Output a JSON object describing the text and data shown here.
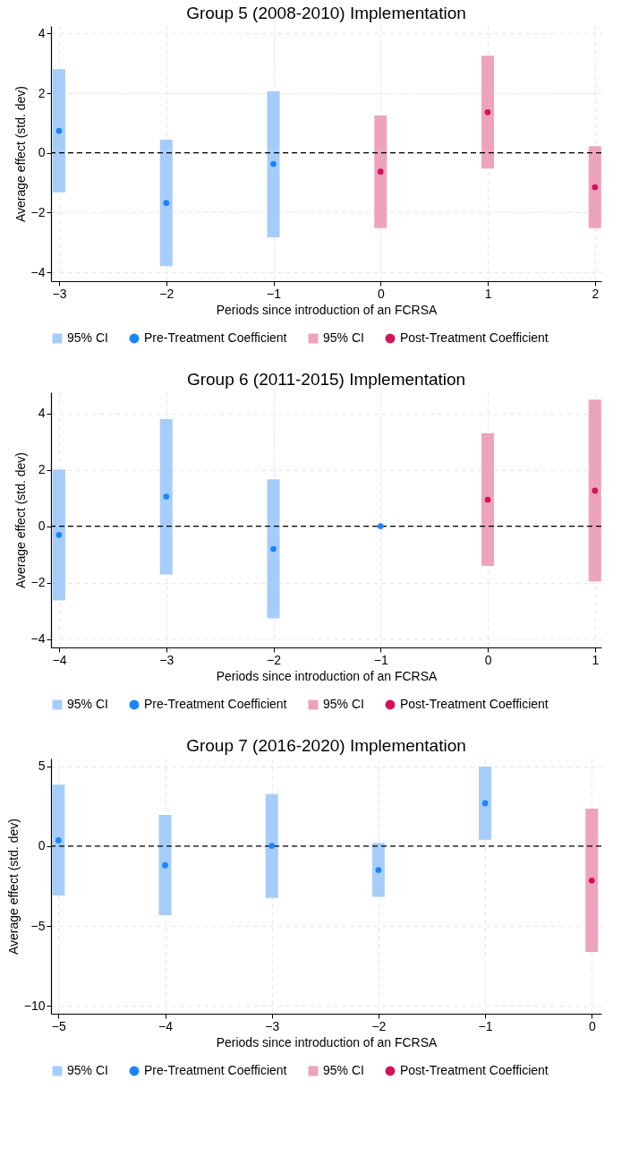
{
  "chart_data": [
    {
      "type": "scatter",
      "title": "Group 5 (2008-2010) Implementation",
      "xlabel": "Periods since introduction of an FCRSA",
      "ylabel": "Average effect (std. dev)",
      "xlim": [
        -3.075,
        2.06
      ],
      "xticks": [
        -3,
        -2,
        -1,
        0,
        1,
        2
      ],
      "ylim": [
        -4.3,
        4.25
      ],
      "yticks": [
        -4,
        -2,
        0,
        2,
        4
      ],
      "grid": true,
      "legend": "bottom",
      "ref_lines": [
        {
          "axis": "y",
          "value": 0,
          "line_style": "dashed",
          "color": "#000000"
        }
      ],
      "series": [
        {
          "name": "95% CI",
          "type": "bar",
          "color": "#a6cdf9",
          "x": [
            -3,
            -2,
            -1
          ],
          "base": [
            -1.32,
            -3.8,
            -2.83
          ],
          "values": [
            4.12,
            4.24,
            4.89
          ]
        },
        {
          "name": "Pre-Treatment Coefficient",
          "type": "scatter",
          "color": "#1a85ff",
          "x": [
            -3,
            -2,
            -1
          ],
          "values": [
            0.74,
            -1.68,
            -0.37
          ]
        },
        {
          "name": "95% CI",
          "type": "bar",
          "color": "#eda3bb",
          "x": [
            0,
            1,
            2
          ],
          "base": [
            -2.52,
            -0.53,
            -2.52
          ],
          "values": [
            3.77,
            3.78,
            2.74
          ]
        },
        {
          "name": "Post-Treatment Coefficient",
          "type": "scatter",
          "color": "#d41159",
          "x": [
            0,
            1,
            2
          ],
          "values": [
            -0.63,
            1.36,
            -1.15
          ]
        }
      ]
    },
    {
      "type": "scatter",
      "title": "Group 6 (2011-2015) Implementation",
      "xlabel": "Periods since introduction of an FCRSA",
      "ylabel": "Average effect (std. dev)",
      "xlim": [
        -4.075,
        1.06
      ],
      "xticks": [
        -4,
        -3,
        -2,
        -1,
        0,
        1
      ],
      "ylim": [
        -4.3,
        4.75
      ],
      "yticks": [
        -4,
        -2,
        0,
        2,
        4
      ],
      "grid": true,
      "legend": "bottom",
      "ref_lines": [
        {
          "axis": "y",
          "value": 0,
          "line_style": "dashed",
          "color": "#000000"
        }
      ],
      "series": [
        {
          "name": "95% CI",
          "type": "bar",
          "color": "#a6cdf9",
          "x": [
            -4,
            -3,
            -2
          ],
          "base": [
            -2.63,
            -1.71,
            -3.27
          ],
          "values": [
            4.64,
            5.51,
            4.93
          ]
        },
        {
          "name": "Pre-Treatment Coefficient",
          "type": "scatter",
          "color": "#1a85ff",
          "x": [
            -4,
            -3,
            -2,
            -1
          ],
          "values": [
            -0.31,
            1.05,
            -0.81,
            0
          ]
        },
        {
          "name": "95% CI",
          "type": "bar",
          "color": "#eda3bb",
          "x": [
            0,
            1
          ],
          "base": [
            -1.41,
            -1.96
          ],
          "values": [
            4.71,
            6.45
          ]
        },
        {
          "name": "Post-Treatment Coefficient",
          "type": "scatter",
          "color": "#d41159",
          "x": [
            0,
            1
          ],
          "values": [
            0.94,
            1.26
          ]
        }
      ]
    },
    {
      "type": "scatter",
      "title": "Group 7 (2016-2020) Implementation",
      "xlabel": "Periods since introduction of an FCRSA",
      "ylabel": "Average effect (std. dev)",
      "xlim": [
        -5.07,
        0.09
      ],
      "xticks": [
        -5,
        -4,
        -3,
        -2,
        -1,
        0
      ],
      "ylim": [
        -10.5,
        5.5
      ],
      "yticks": [
        -10,
        -5,
        0,
        5
      ],
      "grid": true,
      "legend": "bottom",
      "ref_lines": [
        {
          "axis": "y",
          "value": 0,
          "line_style": "dashed",
          "color": "#000000"
        }
      ],
      "series": [
        {
          "name": "95% CI",
          "type": "bar",
          "color": "#a6cdf9",
          "x": [
            -5,
            -4,
            -3,
            -2,
            -1
          ],
          "base": [
            -3.09,
            -4.33,
            -3.24,
            -3.17,
            0.4
          ],
          "values": [
            6.95,
            6.29,
            6.51,
            3.37,
            4.6
          ]
        },
        {
          "name": "Pre-Treatment Coefficient",
          "type": "scatter",
          "color": "#1a85ff",
          "x": [
            -5,
            -4,
            -3,
            -2,
            -1
          ],
          "values": [
            0.37,
            -1.19,
            0.02,
            -1.49,
            2.7
          ]
        },
        {
          "name": "95% CI",
          "type": "bar",
          "color": "#eda3bb",
          "x": [
            0
          ],
          "base": [
            -6.63
          ],
          "values": [
            8.98
          ]
        },
        {
          "name": "Post-Treatment Coefficient",
          "type": "scatter",
          "color": "#d41159",
          "x": [
            0
          ],
          "values": [
            -2.15
          ]
        }
      ]
    }
  ]
}
